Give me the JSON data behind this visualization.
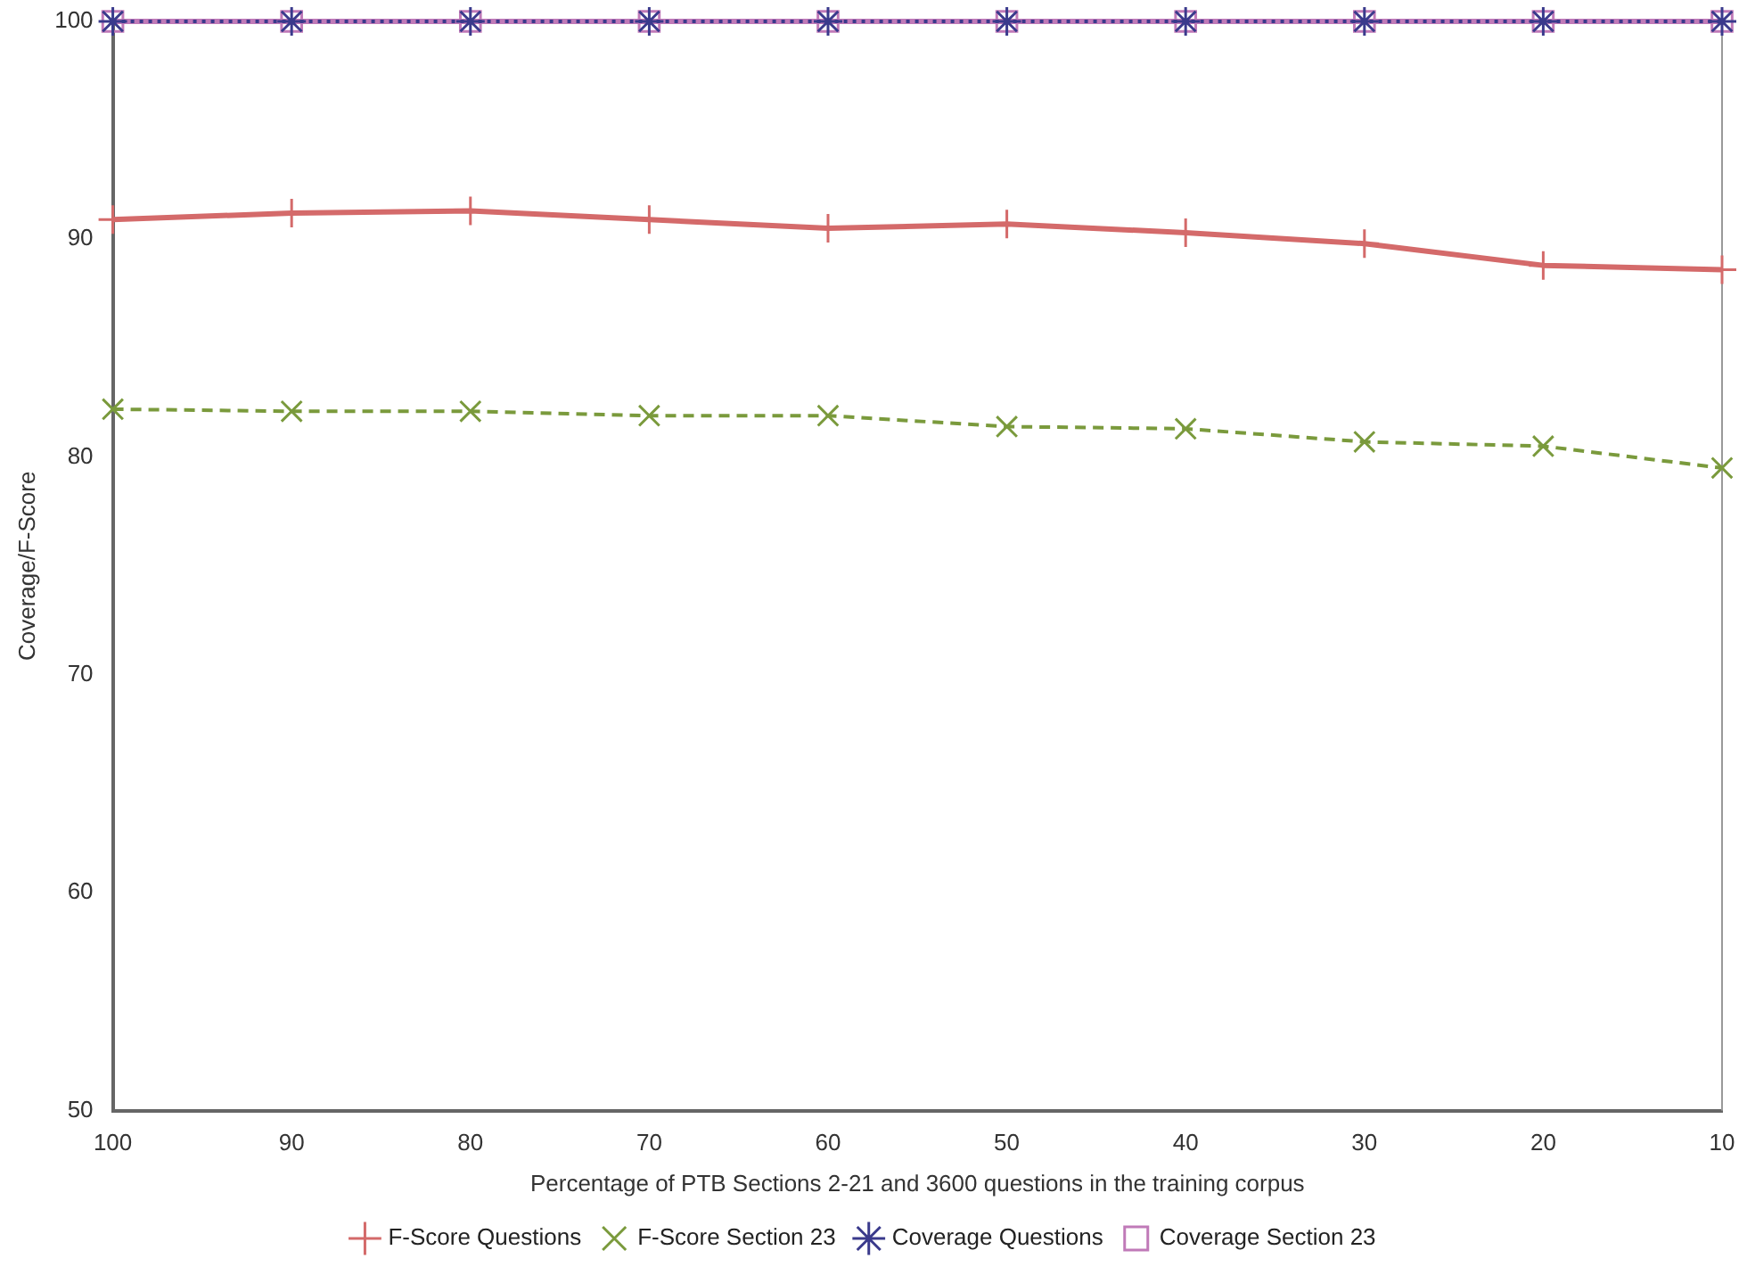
{
  "chart_data": {
    "type": "line",
    "xlabel": "Percentage of PTB Sections 2-21 and 3600 questions in the training corpus",
    "ylabel": "Coverage/F-Score",
    "x": [
      100,
      90,
      80,
      70,
      60,
      50,
      40,
      30,
      20,
      10
    ],
    "xlim": [
      100,
      10
    ],
    "xticks": [
      100,
      90,
      80,
      70,
      60,
      50,
      40,
      30,
      20,
      10
    ],
    "ylim": [
      50,
      100
    ],
    "yticks": [
      50,
      60,
      70,
      80,
      90,
      100
    ],
    "grid": false,
    "legend": "bottom",
    "series": [
      {
        "name": "F-Score Questions",
        "color": "#d46a6a",
        "marker": "cross",
        "line_style": "solid",
        "values": [
          90.9,
          91.2,
          91.3,
          90.9,
          90.5,
          90.7,
          90.3,
          89.8,
          88.8,
          88.6
        ]
      },
      {
        "name": "F-Score Section 23",
        "color": "#7a9a3c",
        "marker": "cross",
        "line_style": "dashed",
        "values": [
          82.2,
          82.1,
          82.1,
          81.9,
          81.9,
          81.4,
          81.3,
          80.7,
          80.5,
          79.5
        ]
      },
      {
        "name": "Coverage Questions",
        "color": "#3a3a8c",
        "marker": "cross",
        "line_style": "dotted",
        "values": [
          100,
          100,
          100,
          100,
          100,
          100,
          100,
          100,
          100,
          100
        ]
      },
      {
        "name": "Coverage Section 23",
        "color": "#c07ab8",
        "marker": "square",
        "line_style": "solid",
        "values": [
          100,
          100,
          100,
          100,
          100,
          100,
          100,
          100,
          100,
          100
        ]
      }
    ]
  }
}
